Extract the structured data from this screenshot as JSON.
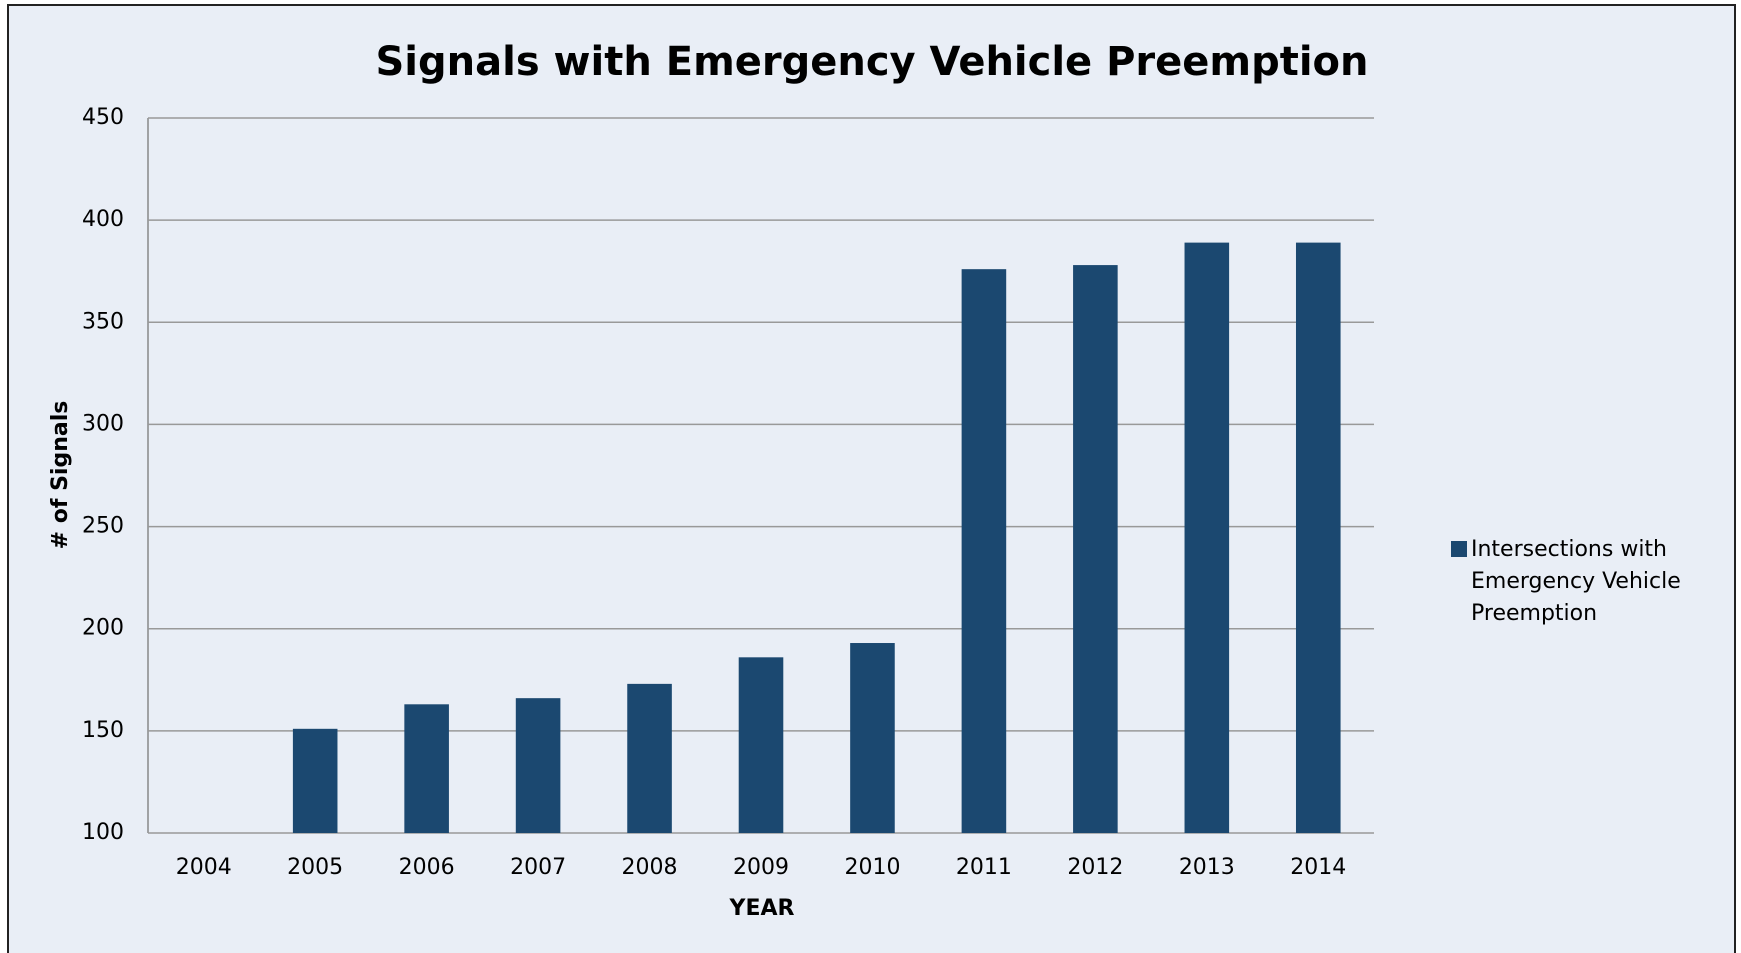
{
  "chart_data": {
    "type": "bar",
    "title": "Signals with Emergency Vehicle Preemption",
    "x_label": "YEAR",
    "y_label": "# of Signals",
    "categories": [
      "2004",
      "2005",
      "2006",
      "2007",
      "2008",
      "2009",
      "2010",
      "2011",
      "2012",
      "2013",
      "2014"
    ],
    "series": [
      {
        "name": "Intersections with Emergency Vehicle Preemption",
        "color": "#1b4870",
        "values": [
          null,
          151,
          163,
          166,
          173,
          186,
          193,
          376,
          378,
          389,
          389
        ]
      }
    ],
    "ylim": [
      100,
      450
    ],
    "yticks": [
      100,
      150,
      200,
      250,
      300,
      350,
      400,
      450
    ],
    "grid": true,
    "legend": "right"
  }
}
